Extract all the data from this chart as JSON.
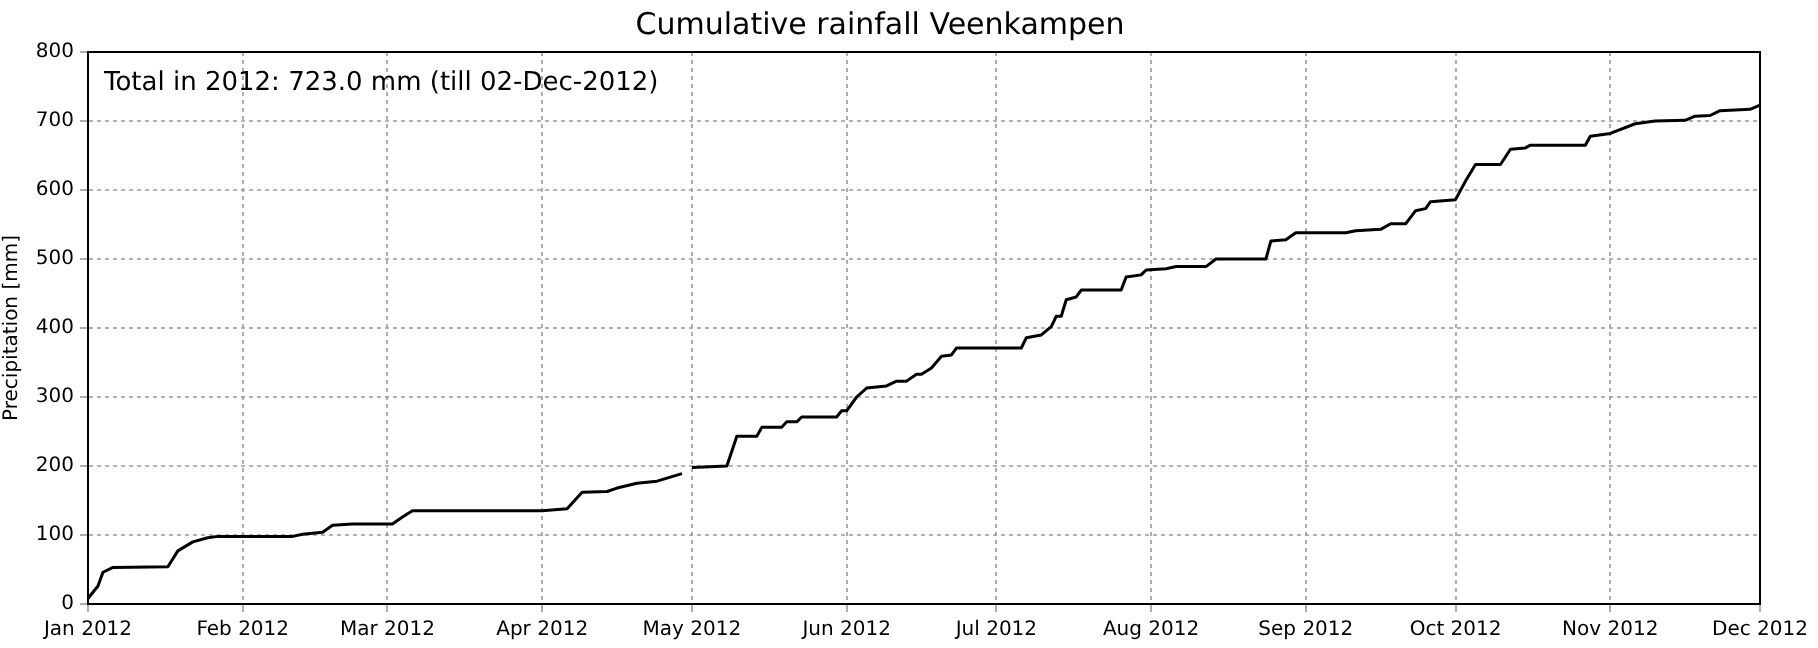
{
  "chart_data": {
    "type": "line",
    "title": "Cumulative rainfall Veenkampen",
    "ylabel": "Precipitation [mm]",
    "annotations": [
      "Total in 2012: 723.0 mm (till 02-Dec-2012)"
    ],
    "x": [
      "2012-01-01",
      "2012-01-03",
      "2012-01-04",
      "2012-01-06",
      "2012-01-17",
      "2012-01-19",
      "2012-01-22",
      "2012-01-25",
      "2012-01-27",
      "2012-02-11",
      "2012-02-13",
      "2012-02-17",
      "2012-02-19",
      "2012-02-23",
      "2012-03-02",
      "2012-03-04",
      "2012-03-06",
      "2012-04-01",
      "2012-04-06",
      "2012-04-09",
      "2012-04-14",
      "2012-04-16",
      "2012-04-20",
      "2012-04-24",
      "2012-04-29",
      "2012-04-30",
      "2012-05-01",
      "2012-05-08",
      "2012-05-10",
      "2012-05-14",
      "2012-05-15",
      "2012-05-19",
      "2012-05-20",
      "2012-05-22",
      "2012-05-23",
      "2012-05-30",
      "2012-05-31",
      "2012-06-01",
      "2012-06-03",
      "2012-06-05",
      "2012-06-09",
      "2012-06-11",
      "2012-06-13",
      "2012-06-15",
      "2012-06-16",
      "2012-06-18",
      "2012-06-20",
      "2012-06-22",
      "2012-06-23",
      "2012-07-06",
      "2012-07-07",
      "2012-07-10",
      "2012-07-12",
      "2012-07-13",
      "2012-07-14",
      "2012-07-15",
      "2012-07-17",
      "2012-07-18",
      "2012-07-26",
      "2012-07-27",
      "2012-07-30",
      "2012-07-31",
      "2012-08-04",
      "2012-08-06",
      "2012-08-12",
      "2012-08-14",
      "2012-08-24",
      "2012-08-25",
      "2012-08-28",
      "2012-08-30",
      "2012-09-09",
      "2012-09-11",
      "2012-09-16",
      "2012-09-18",
      "2012-09-21",
      "2012-09-23",
      "2012-09-25",
      "2012-09-26",
      "2012-10-01",
      "2012-10-03",
      "2012-10-05",
      "2012-10-10",
      "2012-10-12",
      "2012-10-15",
      "2012-10-16",
      "2012-10-27",
      "2012-10-28",
      "2012-11-01",
      "2012-11-06",
      "2012-11-10",
      "2012-11-16",
      "2012-11-18",
      "2012-11-21",
      "2012-11-23",
      "2012-11-29",
      "2012-12-01"
    ],
    "series": [
      {
        "color": "#000000",
        "values": [
          8,
          26,
          46,
          53,
          54,
          77,
          90,
          96,
          98,
          98,
          101,
          104,
          114,
          116,
          116,
          126,
          135,
          135,
          138,
          162,
          163,
          168,
          175,
          178,
          189,
          null,
          198,
          200,
          243,
          243,
          256,
          256,
          264,
          264,
          271,
          271,
          280,
          280,
          300,
          313,
          316,
          323,
          323,
          333,
          333,
          342,
          359,
          361,
          371,
          371,
          386,
          390,
          402,
          417,
          417,
          441,
          445,
          455,
          455,
          474,
          477,
          484,
          486,
          489,
          489,
          500,
          500,
          526,
          528,
          538,
          538,
          541,
          543,
          551,
          551,
          570,
          573,
          583,
          586,
          613,
          637,
          637,
          659,
          661,
          665,
          665,
          678,
          682,
          696,
          700,
          701,
          707,
          708,
          715,
          717,
          723
        ]
      }
    ],
    "xlim": [
      "2012-01-01",
      "2012-12-01"
    ],
    "xticks": [
      {
        "value": "2012-01-01",
        "label": "Jan 2012"
      },
      {
        "value": "2012-02-01",
        "label": "Feb 2012"
      },
      {
        "value": "2012-03-01",
        "label": "Mar 2012"
      },
      {
        "value": "2012-04-01",
        "label": "Apr 2012"
      },
      {
        "value": "2012-05-01",
        "label": "May 2012"
      },
      {
        "value": "2012-06-01",
        "label": "Jun 2012"
      },
      {
        "value": "2012-07-01",
        "label": "Jul 2012"
      },
      {
        "value": "2012-08-01",
        "label": "Aug 2012"
      },
      {
        "value": "2012-09-01",
        "label": "Sep 2012"
      },
      {
        "value": "2012-10-01",
        "label": "Oct 2012"
      },
      {
        "value": "2012-11-01",
        "label": "Nov 2012"
      },
      {
        "value": "2012-12-01",
        "label": "Dec 2012"
      }
    ],
    "ylim": [
      0,
      800
    ],
    "yticks": [
      0,
      100,
      200,
      300,
      400,
      500,
      600,
      700,
      800
    ],
    "grid": true,
    "marker": "none",
    "line_style": "solid",
    "legend": false
  }
}
